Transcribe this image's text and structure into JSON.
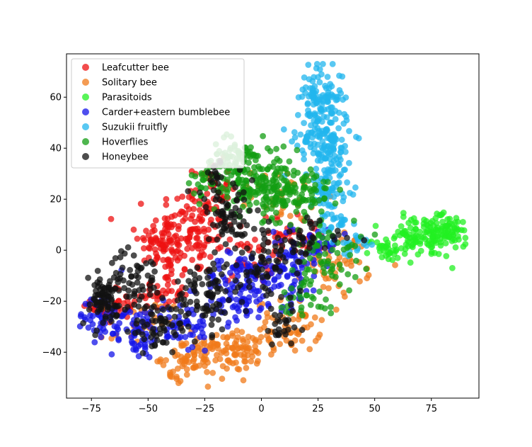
{
  "chart_data": {
    "type": "scatter",
    "title": "",
    "xlabel": "",
    "ylabel": "",
    "xlim": [
      -86,
      96
    ],
    "ylim": [
      -58,
      77
    ],
    "xticks": [
      -75,
      -50,
      -25,
      0,
      25,
      50,
      75
    ],
    "yticks": [
      -40,
      -20,
      0,
      20,
      40,
      60
    ],
    "xtick_labels": [
      "−75",
      "−50",
      "−25",
      "0",
      "25",
      "50",
      "75"
    ],
    "ytick_labels": [
      "−40",
      "−20",
      "0",
      "20",
      "40",
      "60"
    ],
    "grid": false,
    "legend_position": "top-left",
    "marker_alpha": 0.75,
    "series": [
      {
        "name": "Leafcutter bee",
        "color": "#ee1111",
        "clusters": [
          {
            "cx": -30,
            "cy": 8,
            "sx": 9,
            "sy": 9,
            "n": 130
          },
          {
            "cx": -44,
            "cy": 3,
            "sx": 5,
            "sy": 5,
            "n": 60
          },
          {
            "cx": -42,
            "cy": -15,
            "sx": 5,
            "sy": 6,
            "n": 45
          },
          {
            "cx": -22,
            "cy": 25,
            "sx": 4,
            "sy": 5,
            "n": 30
          },
          {
            "cx": -63,
            "cy": -22,
            "sx": 6,
            "sy": 4,
            "n": 35
          },
          {
            "cx": 14,
            "cy": 6,
            "sx": 8,
            "sy": 4,
            "n": 40
          },
          {
            "cx": -5,
            "cy": -3,
            "sx": 6,
            "sy": 5,
            "n": 25
          }
        ]
      },
      {
        "name": "Solitary bee",
        "color": "#f07a1a",
        "clusters": [
          {
            "cx": -30,
            "cy": -42,
            "sx": 7,
            "sy": 4,
            "n": 80
          },
          {
            "cx": -8,
            "cy": -40,
            "sx": 7,
            "sy": 4,
            "n": 70
          },
          {
            "cx": 12,
            "cy": -30,
            "sx": 7,
            "sy": 5,
            "n": 60
          },
          {
            "cx": 35,
            "cy": -5,
            "sx": 8,
            "sy": 6,
            "n": 50
          },
          {
            "cx": 10,
            "cy": 22,
            "sx": 7,
            "sy": 5,
            "n": 30
          },
          {
            "cx": -55,
            "cy": -30,
            "sx": 8,
            "sy": 5,
            "n": 25
          },
          {
            "cx": -40,
            "cy": -50,
            "sx": 2,
            "sy": 1.5,
            "n": 6
          }
        ]
      },
      {
        "name": "Parasitoids",
        "color": "#22f022",
        "clusters": [
          {
            "cx": 72,
            "cy": 5,
            "sx": 9,
            "sy": 4,
            "n": 120
          },
          {
            "cx": 82,
            "cy": 9,
            "sx": 4,
            "sy": 3,
            "n": 40
          },
          {
            "cx": 55,
            "cy": 1,
            "sx": 4,
            "sy": 2,
            "n": 30
          }
        ]
      },
      {
        "name": "Carder+eastern bumblebee",
        "color": "#1414e8",
        "clusters": [
          {
            "cx": -70,
            "cy": -25,
            "sx": 5,
            "sy": 5,
            "n": 45
          },
          {
            "cx": -55,
            "cy": -33,
            "sx": 6,
            "sy": 5,
            "n": 55
          },
          {
            "cx": -35,
            "cy": -30,
            "sx": 7,
            "sy": 5,
            "n": 55
          },
          {
            "cx": -10,
            "cy": -15,
            "sx": 8,
            "sy": 7,
            "n": 110
          },
          {
            "cx": 10,
            "cy": -8,
            "sx": 8,
            "sy": 7,
            "n": 90
          },
          {
            "cx": 25,
            "cy": 3,
            "sx": 6,
            "sy": 4,
            "n": 35
          }
        ]
      },
      {
        "name": "Suzukii fruitfly",
        "color": "#22b6ee",
        "clusters": [
          {
            "cx": 26,
            "cy": 60,
            "sx": 5,
            "sy": 6,
            "n": 100
          },
          {
            "cx": 28,
            "cy": 42,
            "sx": 6,
            "sy": 7,
            "n": 140
          },
          {
            "cx": 30,
            "cy": 25,
            "sx": 4,
            "sy": 5,
            "n": 55
          },
          {
            "cx": 33,
            "cy": 10,
            "sx": 4,
            "sy": 5,
            "n": 30
          },
          {
            "cx": 43,
            "cy": 3,
            "sx": 4,
            "sy": 2,
            "n": 15
          }
        ]
      },
      {
        "name": "Hoverflies",
        "color": "#139e13",
        "clusters": [
          {
            "cx": -5,
            "cy": 28,
            "sx": 9,
            "sy": 7,
            "n": 180
          },
          {
            "cx": 15,
            "cy": 22,
            "sx": 8,
            "sy": 6,
            "n": 110
          },
          {
            "cx": -12,
            "cy": 36,
            "sx": 4,
            "sy": 3,
            "n": 35
          },
          {
            "cx": 30,
            "cy": -2,
            "sx": 7,
            "sy": 7,
            "n": 60
          },
          {
            "cx": -25,
            "cy": 28,
            "sx": 3,
            "sy": 4,
            "n": 20
          },
          {
            "cx": 20,
            "cy": -18,
            "sx": 6,
            "sy": 4,
            "n": 30
          }
        ]
      },
      {
        "name": "Honeybee",
        "color": "#111111",
        "clusters": [
          {
            "cx": -70,
            "cy": -20,
            "sx": 5,
            "sy": 5,
            "n": 80
          },
          {
            "cx": -55,
            "cy": -12,
            "sx": 6,
            "sy": 6,
            "n": 65
          },
          {
            "cx": -45,
            "cy": -30,
            "sx": 6,
            "sy": 5,
            "n": 50
          },
          {
            "cx": -25,
            "cy": -18,
            "sx": 7,
            "sy": 7,
            "n": 90
          },
          {
            "cx": -15,
            "cy": 12,
            "sx": 8,
            "sy": 7,
            "n": 75
          },
          {
            "cx": -20,
            "cy": 30,
            "sx": 3,
            "sy": 3,
            "n": 15
          },
          {
            "cx": 2,
            "cy": -8,
            "sx": 6,
            "sy": 6,
            "n": 50
          },
          {
            "cx": 15,
            "cy": 3,
            "sx": 10,
            "sy": 5,
            "n": 50
          },
          {
            "cx": 10,
            "cy": -30,
            "sx": 5,
            "sy": 4,
            "n": 25
          }
        ]
      }
    ]
  }
}
